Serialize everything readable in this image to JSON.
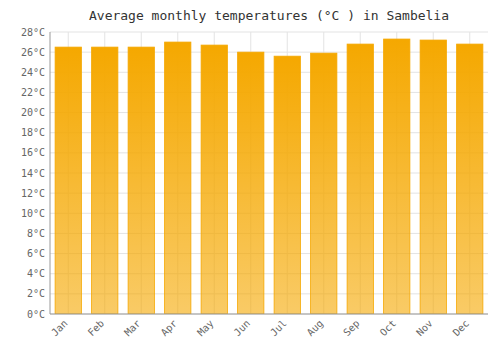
{
  "chart_data": {
    "type": "bar",
    "title": "Average monthly temperatures (°C ) in Sambelia",
    "categories": [
      "Jan",
      "Feb",
      "Mar",
      "Apr",
      "May",
      "Jun",
      "Jul",
      "Aug",
      "Sep",
      "Oct",
      "Nov",
      "Dec"
    ],
    "values": [
      26.5,
      26.5,
      26.5,
      27.0,
      26.7,
      26.0,
      25.6,
      25.9,
      26.8,
      27.3,
      27.2,
      26.8
    ],
    "color": "#F5A800",
    "ylim": [
      0,
      28
    ],
    "yticks": [
      {
        "value": 0,
        "label": "0°C"
      },
      {
        "value": 2,
        "label": "2°C"
      },
      {
        "value": 4,
        "label": "4°C"
      },
      {
        "value": 6,
        "label": "6°C"
      },
      {
        "value": 8,
        "label": "8°C"
      },
      {
        "value": 10,
        "label": "10°C"
      },
      {
        "value": 12,
        "label": "12°C"
      },
      {
        "value": 14,
        "label": "14°C"
      },
      {
        "value": 16,
        "label": "16°C"
      },
      {
        "value": 18,
        "label": "18°C"
      },
      {
        "value": 20,
        "label": "20°C"
      },
      {
        "value": 22,
        "label": "22°C"
      },
      {
        "value": 24,
        "label": "24°C"
      },
      {
        "value": 26,
        "label": "26°C"
      },
      {
        "value": 28,
        "label": "28°C"
      }
    ],
    "grid": true
  }
}
